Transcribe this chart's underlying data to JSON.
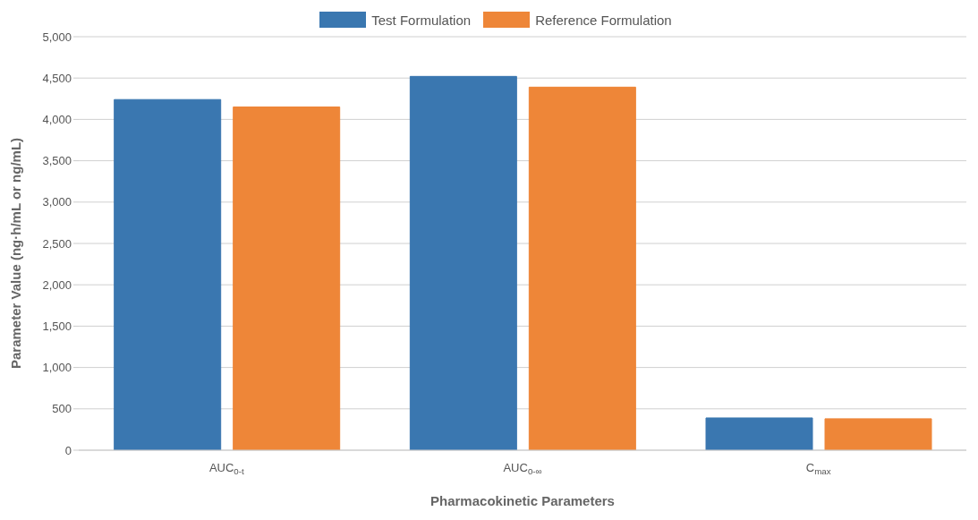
{
  "chart_data": {
    "type": "bar",
    "categories": [
      "AUC$_{0-t}$",
      "AUC$_{0-∞}$",
      "C$_{max}$"
    ],
    "series": [
      {
        "name": "Test Formulation",
        "color": "#3a77b0",
        "values": [
          4240,
          4520,
          390
        ]
      },
      {
        "name": "Reference Formulation",
        "color": "#ee8638",
        "values": [
          4150,
          4390,
          380
        ]
      }
    ],
    "xlabel": "Pharmacokinetic Parameters",
    "ylabel": "Parameter Value (ng·h/mL or ng/mL)",
    "ylim": [
      0,
      5000
    ],
    "yticks": [
      0,
      500,
      {
        "value": 1000,
        "label": "1,000"
      },
      {
        "value": 1500,
        "label": "1,500"
      },
      {
        "value": 2000,
        "label": "2,000"
      },
      {
        "value": 2500,
        "label": "2,500"
      },
      {
        "value": 3000,
        "label": "3,000"
      },
      {
        "value": 3500,
        "label": "3,500"
      },
      {
        "value": 4000,
        "label": "4,000"
      },
      {
        "value": 4500,
        "label": "4,500"
      },
      {
        "value": 5000,
        "label": "5,000"
      }
    ],
    "grid": "y",
    "legend": "top"
  }
}
